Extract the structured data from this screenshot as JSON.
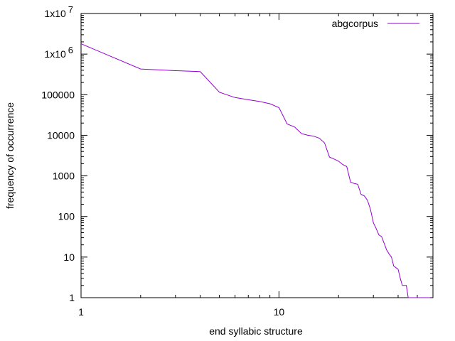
{
  "chart_data": {
    "type": "line",
    "title": "",
    "xlabel": "end syllabic structure",
    "ylabel": "frequency of occurrence",
    "x_scale": "log",
    "y_scale": "log",
    "xlim": [
      1,
      60
    ],
    "ylim": [
      1,
      10000000
    ],
    "grid": false,
    "legend_position": "top-right",
    "x_ticks": [
      {
        "value": 1,
        "label": "1"
      },
      {
        "value": 10,
        "label": "10"
      }
    ],
    "y_ticks": [
      {
        "value": 1,
        "label": "1"
      },
      {
        "value": 10,
        "label": "10"
      },
      {
        "value": 100,
        "label": "100"
      },
      {
        "value": 1000,
        "label": "1000"
      },
      {
        "value": 10000,
        "label": "10000"
      },
      {
        "value": 100000,
        "label": "100000"
      },
      {
        "value": 1000000,
        "label": "1x10",
        "exp": "6"
      },
      {
        "value": 10000000,
        "label": "1x10",
        "exp": "7"
      }
    ],
    "series": [
      {
        "name": "abgcorpus",
        "color": "#9400d3",
        "x": [
          1,
          2,
          3,
          4,
          5,
          6,
          7,
          8,
          9,
          10,
          11,
          12,
          13,
          14,
          15,
          16,
          17,
          18,
          19,
          20,
          21,
          22,
          23,
          24,
          25,
          26,
          27,
          28,
          29,
          30,
          31,
          32,
          33,
          34,
          35,
          36,
          37,
          38,
          39,
          40,
          41,
          42,
          43,
          44,
          45,
          46,
          47,
          48,
          49,
          50,
          51,
          52,
          53,
          54,
          55,
          56,
          57,
          58
        ],
        "y": [
          1800000,
          430000,
          390000,
          370000,
          115000,
          85000,
          75000,
          68000,
          60000,
          48000,
          19000,
          16000,
          11000,
          10000,
          9500,
          8500,
          6500,
          2900,
          2600,
          2300,
          1900,
          1700,
          700,
          650,
          620,
          350,
          320,
          250,
          150,
          70,
          50,
          35,
          32,
          22,
          15,
          12,
          10,
          6,
          5.5,
          5,
          3,
          2,
          2,
          2,
          1,
          1,
          1,
          1,
          1,
          1,
          1,
          1,
          1,
          1,
          1,
          1,
          1,
          1
        ]
      }
    ]
  }
}
